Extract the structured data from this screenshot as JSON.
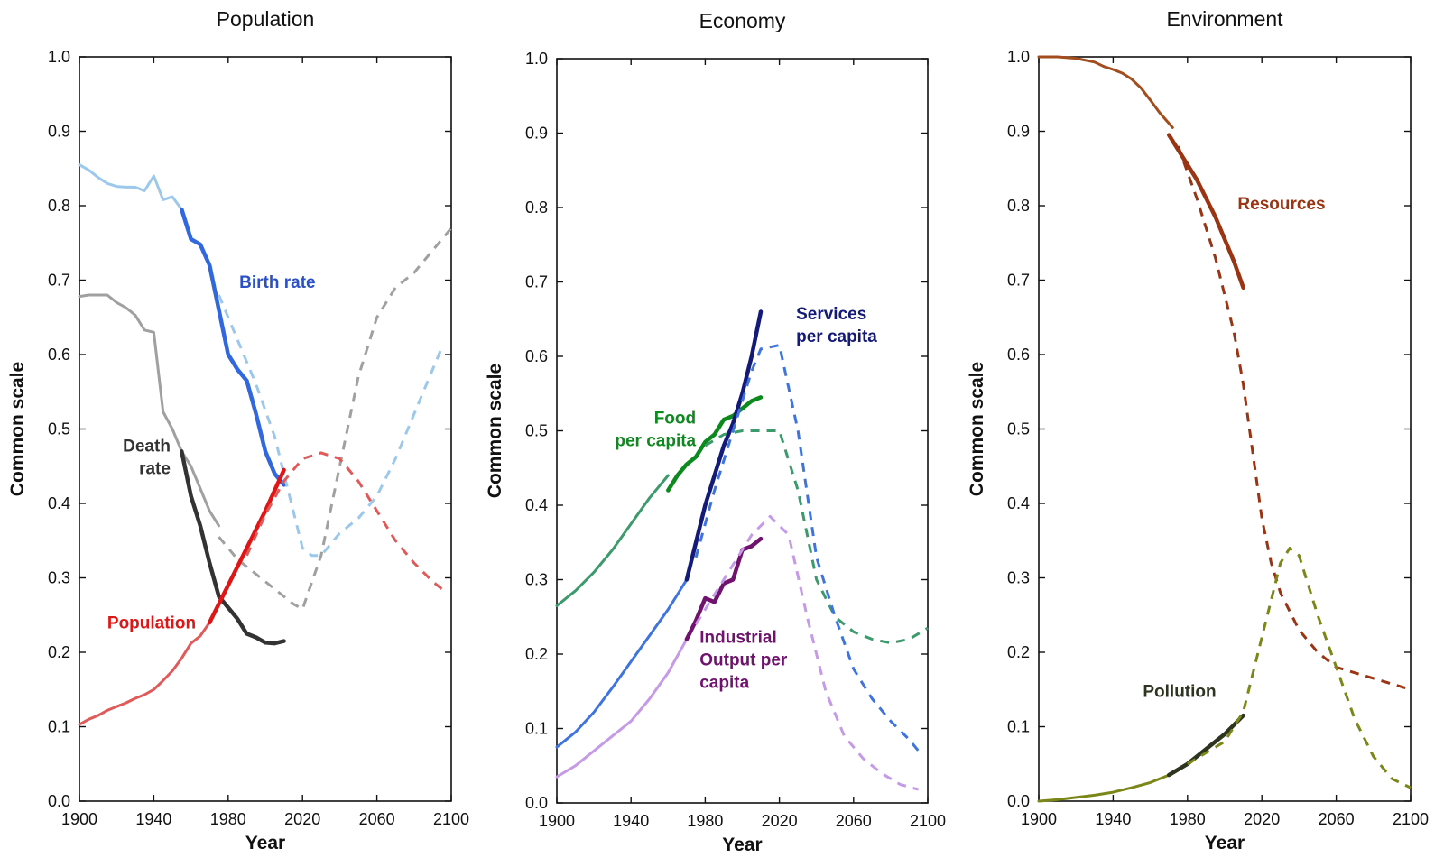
{
  "chart_data": [
    {
      "type": "line",
      "title": "Population",
      "xlabel": "Year",
      "ylabel": "Common scale",
      "xlim": [
        1900,
        2100
      ],
      "ylim": [
        0,
        1
      ],
      "xticks": [
        1900,
        1940,
        1980,
        2020,
        2060,
        2100
      ],
      "yticks": [
        0.0,
        0.1,
        0.2,
        0.3,
        0.4,
        0.5,
        0.6,
        0.7,
        0.8,
        0.9,
        1.0
      ],
      "grid": false,
      "series": [
        {
          "name": "Birth rate",
          "part": "historical",
          "color": "#9cc8ec",
          "width": 3,
          "dashed": false,
          "x": [
            1900,
            1905,
            1910,
            1915,
            1920,
            1925,
            1930,
            1935,
            1940,
            1945,
            1950,
            1955
          ],
          "y": [
            0.855,
            0.848,
            0.838,
            0.83,
            0.826,
            0.825,
            0.825,
            0.82,
            0.84,
            0.808,
            0.812,
            0.795
          ]
        },
        {
          "name": "Birth rate",
          "part": "observed",
          "color": "#3168e0",
          "width": 4.5,
          "dashed": false,
          "x": [
            1955,
            1960,
            1965,
            1970,
            1975,
            1980,
            1985,
            1990,
            1995,
            2000,
            2005,
            2010
          ],
          "y": [
            0.795,
            0.755,
            0.748,
            0.72,
            0.66,
            0.6,
            0.58,
            0.565,
            0.52,
            0.47,
            0.44,
            0.425
          ]
        },
        {
          "name": "Birth rate",
          "part": "model",
          "color": "#9cc8ec",
          "width": 3,
          "dashed": true,
          "x": [
            1975,
            1985,
            1995,
            2005,
            2015,
            2020,
            2025,
            2030,
            2040,
            2050,
            2060,
            2070,
            2080,
            2090,
            2095
          ],
          "y": [
            0.68,
            0.62,
            0.56,
            0.49,
            0.39,
            0.34,
            0.33,
            0.33,
            0.36,
            0.38,
            0.41,
            0.46,
            0.52,
            0.58,
            0.61
          ]
        },
        {
          "name": "Death rate",
          "part": "historical",
          "color": "#a0a0a0",
          "width": 3,
          "dashed": false,
          "x": [
            1900,
            1905,
            1910,
            1915,
            1920,
            1925,
            1930,
            1935,
            1940,
            1945,
            1950,
            1955,
            1960,
            1965,
            1970,
            1975
          ],
          "y": [
            0.678,
            0.68,
            0.68,
            0.68,
            0.67,
            0.663,
            0.653,
            0.633,
            0.63,
            0.523,
            0.5,
            0.47,
            0.45,
            0.42,
            0.39,
            0.37
          ]
        },
        {
          "name": "Death rate",
          "part": "observed",
          "color": "#333333",
          "width": 4.5,
          "dashed": false,
          "x": [
            1955,
            1960,
            1965,
            1970,
            1975,
            1980,
            1985,
            1990,
            1995,
            2000,
            2005,
            2010
          ],
          "y": [
            0.47,
            0.41,
            0.37,
            0.32,
            0.275,
            0.26,
            0.245,
            0.225,
            0.22,
            0.213,
            0.212,
            0.215
          ]
        },
        {
          "name": "Death rate",
          "part": "model",
          "color": "#a0a0a0",
          "width": 3,
          "dashed": true,
          "x": [
            1975,
            1985,
            1995,
            2005,
            2015,
            2020,
            2030,
            2040,
            2050,
            2060,
            2070,
            2080,
            2090,
            2100
          ],
          "y": [
            0.355,
            0.325,
            0.305,
            0.285,
            0.265,
            0.258,
            0.33,
            0.45,
            0.57,
            0.65,
            0.69,
            0.71,
            0.74,
            0.77
          ]
        },
        {
          "name": "Population",
          "part": "historical",
          "color": "#e05a5a",
          "width": 3,
          "dashed": false,
          "x": [
            1900,
            1905,
            1910,
            1915,
            1920,
            1925,
            1930,
            1935,
            1940,
            1945,
            1950,
            1955,
            1960,
            1965,
            1970
          ],
          "y": [
            0.103,
            0.11,
            0.115,
            0.122,
            0.127,
            0.132,
            0.138,
            0.143,
            0.15,
            0.162,
            0.175,
            0.192,
            0.212,
            0.222,
            0.24
          ]
        },
        {
          "name": "Population",
          "part": "observed",
          "color": "#e01616",
          "width": 4.5,
          "dashed": false,
          "x": [
            1970,
            1980,
            1990,
            2000,
            2010
          ],
          "y": [
            0.24,
            0.29,
            0.34,
            0.39,
            0.445
          ]
        },
        {
          "name": "Population",
          "part": "model",
          "color": "#e05a5a",
          "width": 3,
          "dashed": true,
          "x": [
            1990,
            2000,
            2010,
            2020,
            2030,
            2040,
            2050,
            2060,
            2070,
            2080,
            2090,
            2095
          ],
          "y": [
            0.33,
            0.385,
            0.43,
            0.46,
            0.468,
            0.46,
            0.43,
            0.39,
            0.35,
            0.32,
            0.295,
            0.285
          ]
        }
      ],
      "annotations": [
        {
          "text": [
            "Birth rate"
          ],
          "color": "#2b50c8",
          "x": 1986,
          "y": 0.69,
          "align": "start"
        },
        {
          "text": [
            "Death",
            "rate"
          ],
          "color": "#333333",
          "x": 1949,
          "y": 0.47,
          "align": "end"
        },
        {
          "text": [
            "Population"
          ],
          "color": "#e01616",
          "x": 1915,
          "y": 0.232,
          "align": "start"
        }
      ]
    },
    {
      "type": "line",
      "title": "Economy",
      "xlabel": "Year",
      "ylabel": "Common scale",
      "xlim": [
        1900,
        2100
      ],
      "ylim": [
        0,
        1
      ],
      "xticks": [
        1900,
        1940,
        1980,
        2020,
        2060,
        2100
      ],
      "yticks": [
        0.0,
        0.1,
        0.2,
        0.3,
        0.4,
        0.5,
        0.6,
        0.7,
        0.8,
        0.9,
        1.0
      ],
      "grid": false,
      "series": [
        {
          "name": "Food per capita",
          "part": "historical",
          "color": "#3c9a6c",
          "width": 3,
          "dashed": false,
          "x": [
            1900,
            1910,
            1920,
            1930,
            1940,
            1950,
            1960
          ],
          "y": [
            0.265,
            0.285,
            0.31,
            0.34,
            0.375,
            0.41,
            0.44
          ]
        },
        {
          "name": "Food per capita",
          "part": "observed",
          "color": "#0d8a1e",
          "width": 4.5,
          "dashed": false,
          "x": [
            1960,
            1965,
            1970,
            1975,
            1980,
            1985,
            1990,
            1995,
            2000,
            2005,
            2010
          ],
          "y": [
            0.42,
            0.44,
            0.455,
            0.465,
            0.485,
            0.495,
            0.515,
            0.52,
            0.53,
            0.54,
            0.545
          ]
        },
        {
          "name": "Food per capita",
          "part": "model",
          "color": "#3c9a6c",
          "width": 3,
          "dashed": true,
          "x": [
            1980,
            1990,
            2000,
            2010,
            2020,
            2030,
            2040,
            2050,
            2060,
            2070,
            2080,
            2090,
            2100
          ],
          "y": [
            0.48,
            0.495,
            0.5,
            0.5,
            0.5,
            0.42,
            0.3,
            0.25,
            0.23,
            0.22,
            0.215,
            0.22,
            0.235
          ]
        },
        {
          "name": "Services per capita",
          "part": "historical",
          "color": "#3f74e0",
          "width": 3,
          "dashed": false,
          "x": [
            1900,
            1910,
            1920,
            1930,
            1940,
            1950,
            1960,
            1970
          ],
          "y": [
            0.075,
            0.095,
            0.122,
            0.155,
            0.19,
            0.225,
            0.26,
            0.3
          ]
        },
        {
          "name": "Services per capita",
          "part": "observed",
          "color": "#141a78",
          "width": 4.5,
          "dashed": false,
          "x": [
            1970,
            1975,
            1980,
            1985,
            1990,
            1995,
            2000,
            2005,
            2010
          ],
          "y": [
            0.3,
            0.35,
            0.4,
            0.44,
            0.48,
            0.51,
            0.55,
            0.6,
            0.66
          ]
        },
        {
          "name": "Services per capita",
          "part": "model",
          "color": "#3f74e0",
          "width": 3,
          "dashed": true,
          "x": [
            1975,
            1985,
            1995,
            2005,
            2010,
            2020,
            2030,
            2040,
            2050,
            2060,
            2070,
            2080,
            2090,
            2095
          ],
          "y": [
            0.33,
            0.42,
            0.5,
            0.58,
            0.61,
            0.615,
            0.5,
            0.33,
            0.25,
            0.18,
            0.14,
            0.11,
            0.085,
            0.07
          ]
        },
        {
          "name": "Industrial Output per capita",
          "part": "historical",
          "color": "#c59ae6",
          "width": 3,
          "dashed": false,
          "x": [
            1900,
            1910,
            1920,
            1930,
            1940,
            1950,
            1960,
            1970
          ],
          "y": [
            0.035,
            0.05,
            0.07,
            0.09,
            0.11,
            0.14,
            0.175,
            0.22
          ]
        },
        {
          "name": "Industrial Output per capita",
          "part": "observed",
          "color": "#70126e",
          "width": 4.5,
          "dashed": false,
          "x": [
            1970,
            1975,
            1980,
            1985,
            1990,
            1995,
            2000,
            2005,
            2010
          ],
          "y": [
            0.22,
            0.245,
            0.275,
            0.27,
            0.295,
            0.3,
            0.34,
            0.345,
            0.355
          ]
        },
        {
          "name": "Industrial Output per capita",
          "part": "model",
          "color": "#c59ae6",
          "width": 3,
          "dashed": true,
          "x": [
            1975,
            1985,
            1995,
            2005,
            2015,
            2025,
            2035,
            2045,
            2055,
            2065,
            2075,
            2085,
            2095
          ],
          "y": [
            0.24,
            0.28,
            0.32,
            0.36,
            0.385,
            0.36,
            0.25,
            0.15,
            0.09,
            0.06,
            0.04,
            0.025,
            0.018
          ]
        }
      ],
      "annotations": [
        {
          "text": [
            "Services",
            "per capita"
          ],
          "color": "#141a78",
          "x": 2029,
          "y": 0.65,
          "align": "start"
        },
        {
          "text": [
            "Food",
            "per capita"
          ],
          "color": "#0d8a1e",
          "x": 1975,
          "y": 0.51,
          "align": "end"
        },
        {
          "text": [
            "Industrial",
            "Output per",
            "capita"
          ],
          "color": "#70126e",
          "x": 1977,
          "y": 0.215,
          "align": "start"
        }
      ]
    },
    {
      "type": "line",
      "title": "Environment",
      "xlabel": "Year",
      "ylabel": "Common scale",
      "xlim": [
        1900,
        2100
      ],
      "ylim": [
        0,
        1
      ],
      "xticks": [
        1900,
        1940,
        1980,
        2020,
        2060,
        2100
      ],
      "yticks": [
        0.0,
        0.1,
        0.2,
        0.3,
        0.4,
        0.5,
        0.6,
        0.7,
        0.8,
        0.9,
        1.0
      ],
      "grid": false,
      "series": [
        {
          "name": "Resources",
          "part": "historical",
          "color": "#a34d1e",
          "width": 3,
          "dashed": false,
          "x": [
            1900,
            1910,
            1920,
            1930,
            1935,
            1940,
            1945,
            1950,
            1955,
            1960,
            1965,
            1972
          ],
          "y": [
            1.0,
            1.0,
            0.998,
            0.993,
            0.987,
            0.983,
            0.978,
            0.97,
            0.958,
            0.942,
            0.925,
            0.905
          ]
        },
        {
          "name": "Resources",
          "part": "observed",
          "color": "#9a3412",
          "width": 4.5,
          "dashed": false,
          "x": [
            1970,
            1975,
            1980,
            1985,
            1990,
            1995,
            2000,
            2005,
            2010
          ],
          "y": [
            0.895,
            0.875,
            0.855,
            0.835,
            0.81,
            0.785,
            0.755,
            0.725,
            0.69
          ]
        },
        {
          "name": "Resources",
          "part": "model",
          "color": "#9a3412",
          "width": 3,
          "dashed": true,
          "x": [
            1975,
            1985,
            1995,
            2005,
            2010,
            2015,
            2020,
            2025,
            2030,
            2040,
            2050,
            2060,
            2080,
            2100
          ],
          "y": [
            0.88,
            0.81,
            0.73,
            0.63,
            0.56,
            0.47,
            0.38,
            0.32,
            0.28,
            0.23,
            0.2,
            0.18,
            0.165,
            0.15
          ]
        },
        {
          "name": "Pollution",
          "part": "historical",
          "color": "#7b8718",
          "width": 3,
          "dashed": false,
          "x": [
            1900,
            1910,
            1920,
            1930,
            1940,
            1950,
            1960,
            1970
          ],
          "y": [
            0.0,
            0.002,
            0.005,
            0.008,
            0.012,
            0.018,
            0.025,
            0.035
          ]
        },
        {
          "name": "Pollution",
          "part": "observed",
          "color": "#2d3420",
          "width": 4.5,
          "dashed": false,
          "x": [
            1970,
            1980,
            1990,
            2000,
            2010
          ],
          "y": [
            0.035,
            0.05,
            0.07,
            0.09,
            0.115
          ]
        },
        {
          "name": "Pollution",
          "part": "model",
          "color": "#7b8718",
          "width": 3,
          "dashed": true,
          "x": [
            1980,
            1990,
            2000,
            2010,
            2020,
            2030,
            2035,
            2040,
            2050,
            2060,
            2070,
            2080,
            2090,
            2100
          ],
          "y": [
            0.05,
            0.065,
            0.08,
            0.12,
            0.22,
            0.32,
            0.34,
            0.33,
            0.25,
            0.18,
            0.11,
            0.06,
            0.03,
            0.018
          ]
        }
      ],
      "annotations": [
        {
          "text": [
            "Resources"
          ],
          "color": "#9a3412",
          "x": 2007,
          "y": 0.795,
          "align": "start"
        },
        {
          "text": [
            "Pollution"
          ],
          "color": "#2d3420",
          "x": 1956,
          "y": 0.14,
          "align": "start"
        }
      ]
    }
  ]
}
